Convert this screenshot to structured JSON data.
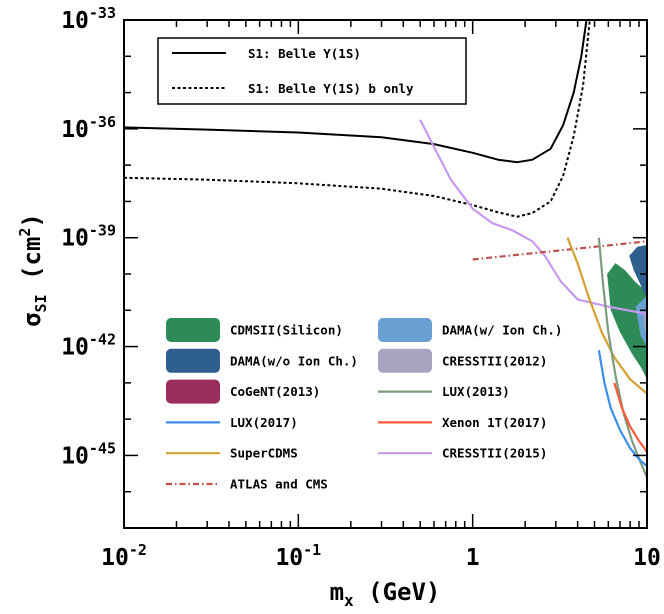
{
  "chart_data": {
    "type": "line",
    "x_scale": "log",
    "y_scale": "log",
    "xlim": [
      0.01,
      10
    ],
    "ylim": [
      1e-47,
      1e-33
    ],
    "xlabel": {
      "main": "m",
      "sub": "x",
      "rest": " (GeV)"
    },
    "ylabel": {
      "main": "σ",
      "sub": "SI",
      "rest": " (cm",
      "sup": "2",
      "end": ")"
    },
    "x_ticks": [
      {
        "base": "10",
        "exp": "-2",
        "text": ""
      },
      {
        "base": "10",
        "exp": "-1",
        "text": ""
      },
      {
        "base": "",
        "exp": "",
        "text": "1"
      },
      {
        "base": "",
        "exp": "",
        "text": "10"
      }
    ],
    "y_ticks": [
      {
        "base": "10",
        "exp": "-45"
      },
      {
        "base": "10",
        "exp": "-42"
      },
      {
        "base": "10",
        "exp": "-39"
      },
      {
        "base": "10",
        "exp": "-36"
      },
      {
        "base": "10",
        "exp": "-33"
      }
    ],
    "top_legend": [
      {
        "label": "S1: Belle Υ(1S)",
        "style": "solid"
      },
      {
        "label": "S1: Belle Υ(1S) b only",
        "style": "dotted"
      }
    ],
    "legend": [
      {
        "label": "CDMSII(Silicon)",
        "kind": "patch",
        "color": "#2e8b57"
      },
      {
        "label": "DAMA(w/ Ion Ch.)",
        "kind": "patch",
        "color": "#6a9fd4"
      },
      {
        "label": "DAMA(w/o Ion Ch.)",
        "kind": "patch",
        "color": "#2f5f8f"
      },
      {
        "label": "CRESSTII(2012)",
        "kind": "patch",
        "color": "#a8a4c0"
      },
      {
        "label": "CoGeNT(2013)",
        "kind": "patch",
        "color": "#9b2d5e"
      },
      {
        "label": "LUX(2013)",
        "kind": "line",
        "color": "#7d9c7f",
        "style": "solid"
      },
      {
        "label": "LUX(2017)",
        "kind": "line",
        "color": "#3c8fe8",
        "style": "solid"
      },
      {
        "label": "Xenon 1T(2017)",
        "kind": "line",
        "color": "#ff5a3a",
        "style": "solid"
      },
      {
        "label": "SuperCDMS",
        "kind": "line",
        "color": "#d4a030",
        "style": "solid"
      },
      {
        "label": "CRESSTII(2015)",
        "kind": "line",
        "color": "#c79af0",
        "style": "solid"
      },
      {
        "label": "ATLAS and CMS",
        "kind": "line",
        "color": "#c0504d",
        "style": "dashdot"
      }
    ],
    "series": [
      {
        "name": "S1: Belle Υ(1S)",
        "color": "#000000",
        "style": "solid",
        "points": [
          [
            0.01,
            -35.96
          ],
          [
            0.03,
            -36.02
          ],
          [
            0.1,
            -36.1
          ],
          [
            0.3,
            -36.23
          ],
          [
            0.6,
            -36.42
          ],
          [
            1.0,
            -36.66
          ],
          [
            1.4,
            -36.85
          ],
          [
            1.8,
            -36.92
          ],
          [
            2.2,
            -36.85
          ],
          [
            2.8,
            -36.55
          ],
          [
            3.3,
            -35.9
          ],
          [
            3.8,
            -35.0
          ],
          [
            4.2,
            -34.0
          ],
          [
            4.5,
            -33.0
          ]
        ]
      },
      {
        "name": "S1: Belle Υ(1S) b only",
        "color": "#000000",
        "style": "dotted",
        "points": [
          [
            0.01,
            -37.35
          ],
          [
            0.03,
            -37.4
          ],
          [
            0.1,
            -37.5
          ],
          [
            0.3,
            -37.65
          ],
          [
            0.6,
            -37.85
          ],
          [
            1.0,
            -38.1
          ],
          [
            1.4,
            -38.3
          ],
          [
            1.8,
            -38.42
          ],
          [
            2.2,
            -38.32
          ],
          [
            2.8,
            -38.0
          ],
          [
            3.3,
            -37.3
          ],
          [
            3.8,
            -36.2
          ],
          [
            4.3,
            -34.8
          ],
          [
            4.7,
            -33.0
          ]
        ]
      },
      {
        "name": "CRESSTII(2015)",
        "color": "#c79af0",
        "style": "solid",
        "points": [
          [
            0.5,
            -35.75
          ],
          [
            0.6,
            -36.5
          ],
          [
            0.75,
            -37.4
          ],
          [
            1.0,
            -38.2
          ],
          [
            1.3,
            -38.6
          ],
          [
            1.7,
            -38.8
          ],
          [
            2.2,
            -39.1
          ],
          [
            2.6,
            -39.5
          ],
          [
            3.2,
            -40.2
          ],
          [
            4.0,
            -40.7
          ],
          [
            6.0,
            -40.9
          ],
          [
            10,
            -41.1
          ]
        ]
      },
      {
        "name": "ATLAS and CMS",
        "color": "#c0504d",
        "style": "dashdot",
        "points": [
          [
            1.0,
            -39.6
          ],
          [
            2.0,
            -39.45
          ],
          [
            4.0,
            -39.3
          ],
          [
            7.0,
            -39.18
          ],
          [
            10,
            -39.1
          ]
        ]
      },
      {
        "name": "SuperCDMS",
        "color": "#d4a030",
        "style": "solid",
        "points": [
          [
            3.5,
            -39.0
          ],
          [
            4.0,
            -39.7
          ],
          [
            4.6,
            -40.6
          ],
          [
            5.5,
            -41.6
          ],
          [
            6.5,
            -42.3
          ],
          [
            8.0,
            -42.9
          ],
          [
            10,
            -43.3
          ]
        ]
      },
      {
        "name": "LUX(2013)",
        "color": "#7d9c7f",
        "style": "solid",
        "points": [
          [
            5.3,
            -39.0
          ],
          [
            5.6,
            -40.3
          ],
          [
            6.0,
            -41.6
          ],
          [
            6.6,
            -42.8
          ],
          [
            7.3,
            -43.8
          ],
          [
            8.2,
            -44.6
          ],
          [
            9.2,
            -45.2
          ],
          [
            10,
            -45.6
          ]
        ]
      },
      {
        "name": "LUX(2017)",
        "color": "#3c8fe8",
        "style": "solid",
        "points": [
          [
            5.3,
            -42.1
          ],
          [
            5.7,
            -43.0
          ],
          [
            6.2,
            -43.7
          ],
          [
            7.0,
            -44.3
          ],
          [
            8.0,
            -44.8
          ],
          [
            9.0,
            -45.1
          ],
          [
            10,
            -45.3
          ]
        ]
      },
      {
        "name": "Xenon 1T(2017)",
        "color": "#ff5a3a",
        "style": "solid",
        "points": [
          [
            6.5,
            -43.0
          ],
          [
            7.2,
            -43.7
          ],
          [
            8.0,
            -44.2
          ],
          [
            9.0,
            -44.6
          ],
          [
            10,
            -44.9
          ]
        ]
      }
    ],
    "regions": [
      {
        "name": "CDMSII(Silicon)",
        "color": "#2e8b57",
        "points": [
          [
            5.9,
            -40.0
          ],
          [
            6.6,
            -39.7
          ],
          [
            7.5,
            -39.9
          ],
          [
            8.5,
            -40.2
          ],
          [
            10,
            -40.5
          ],
          [
            10,
            -42.9
          ],
          [
            9.3,
            -42.6
          ],
          [
            8.2,
            -42.2
          ],
          [
            7.0,
            -41.6
          ],
          [
            6.2,
            -41.0
          ]
        ]
      },
      {
        "name": "DAMA(w/ Ion Ch.)",
        "color": "#6a9fd4",
        "points": [
          [
            8.6,
            -40.9
          ],
          [
            10,
            -40.6
          ],
          [
            10,
            -42.0
          ],
          [
            9.2,
            -41.7
          ]
        ]
      },
      {
        "name": "DAMA(w/o Ion Ch.)",
        "color": "#2f5f8f",
        "points": [
          [
            7.9,
            -39.5
          ],
          [
            8.8,
            -39.25
          ],
          [
            10,
            -39.2
          ],
          [
            10,
            -40.7
          ],
          [
            9.4,
            -40.4
          ],
          [
            8.4,
            -39.9
          ]
        ]
      },
      {
        "name": "CRESSTII(2012)",
        "color": "#a8a4c0",
        "points": [
          [
            9.6,
            -41.1
          ],
          [
            10,
            -41.0
          ],
          [
            10,
            -41.6
          ],
          [
            9.7,
            -41.5
          ]
        ]
      }
    ]
  }
}
